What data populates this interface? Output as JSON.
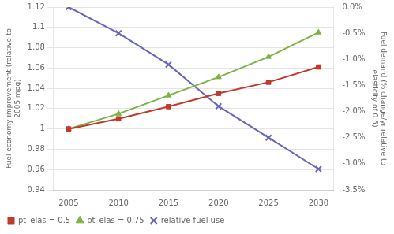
{
  "chart_data": {
    "type": "line",
    "x": [
      2005,
      2010,
      2015,
      2020,
      2025,
      2030
    ],
    "xlim": [
      2003.5,
      2031.5
    ],
    "xticks": [
      2005,
      2010,
      2015,
      2020,
      2025,
      2030
    ],
    "ylabel": "Fuel economy improvement (relative to\n2005 mpg)",
    "y2label": "Fuel demand (% change/yr relative to\nelasticity of 0.5)",
    "ylim": [
      0.94,
      1.12
    ],
    "yticks": [
      0.94,
      0.96,
      0.98,
      1,
      1.02,
      1.04,
      1.06,
      1.08,
      1.1,
      1.12
    ],
    "y2lim": [
      -0.035,
      0.0
    ],
    "y2ticks": [
      {
        "value": 0.0,
        "label": "0.0%"
      },
      {
        "value": -0.005,
        "label": "-0.5%"
      },
      {
        "value": -0.01,
        "label": "-1.0%"
      },
      {
        "value": -0.015,
        "label": "-1.5%"
      },
      {
        "value": -0.02,
        "label": "-2.0%"
      },
      {
        "value": -0.025,
        "label": "-2.5%"
      },
      {
        "value": -0.03,
        "label": "-3.0%"
      },
      {
        "value": -0.035,
        "label": "-3.5%"
      }
    ],
    "series": [
      {
        "name": "pt_elas = 0.5",
        "color": "#c0392b",
        "marker": "square",
        "values": [
          1.0,
          1.01,
          1.022,
          1.035,
          1.046,
          1.061
        ]
      },
      {
        "name": "pt_elas = 0.75",
        "color": "#7cb342",
        "marker": "triangle",
        "values": [
          1.0,
          1.015,
          1.033,
          1.051,
          1.071,
          1.095
        ]
      },
      {
        "name": "relative fuel use",
        "color": "#6666bb",
        "marker": "x",
        "axis": "y2",
        "values": [
          0.0,
          -0.005,
          -0.011,
          -0.019,
          -0.025,
          -0.031
        ]
      }
    ],
    "grid": "y",
    "legend": "lower left"
  }
}
